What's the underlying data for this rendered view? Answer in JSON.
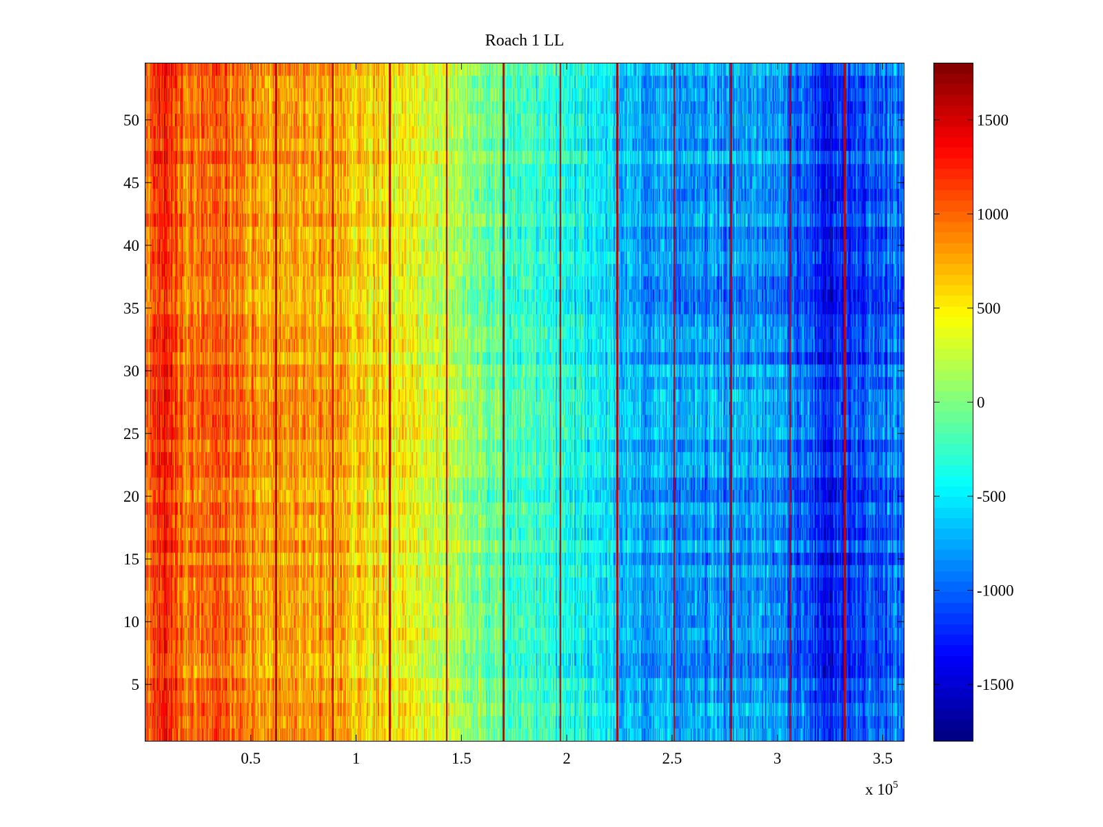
{
  "chart_data": {
    "type": "heatmap",
    "title": "Roach 1 LL",
    "xlabel": "",
    "ylabel": "",
    "x_exponent_label": {
      "prefix": "x 10",
      "power": "5"
    },
    "xlim": [
      0.0,
      3.6
    ],
    "ylim": [
      0.5,
      54.5
    ],
    "x_ticks": [
      {
        "value": 0.5,
        "label": "0.5"
      },
      {
        "value": 1.0,
        "label": "1"
      },
      {
        "value": 1.5,
        "label": "1.5"
      },
      {
        "value": 2.0,
        "label": "2"
      },
      {
        "value": 2.5,
        "label": "2.5"
      },
      {
        "value": 3.0,
        "label": "3"
      },
      {
        "value": 3.5,
        "label": "3.5"
      }
    ],
    "y_ticks": [
      {
        "value": 5,
        "label": "5"
      },
      {
        "value": 10,
        "label": "10"
      },
      {
        "value": 15,
        "label": "15"
      },
      {
        "value": 20,
        "label": "20"
      },
      {
        "value": 25,
        "label": "25"
      },
      {
        "value": 30,
        "label": "30"
      },
      {
        "value": 35,
        "label": "35"
      },
      {
        "value": 40,
        "label": "40"
      },
      {
        "value": 45,
        "label": "45"
      },
      {
        "value": 50,
        "label": "50"
      }
    ],
    "colorbar": {
      "colormap": "jet",
      "clim": [
        -1800,
        1800
      ],
      "ticks": [
        {
          "value": 1500,
          "label": "1500"
        },
        {
          "value": 1000,
          "label": "1000"
        },
        {
          "value": 500,
          "label": "500"
        },
        {
          "value": 0,
          "label": "0"
        },
        {
          "value": -500,
          "label": "-500"
        },
        {
          "value": -1000,
          "label": "-1000"
        },
        {
          "value": -1500,
          "label": "-1500"
        }
      ]
    },
    "rows": 54,
    "trend_profile": [
      {
        "x": 0.0,
        "value": 900
      },
      {
        "x": 0.08,
        "value": 1250
      },
      {
        "x": 0.2,
        "value": 900
      },
      {
        "x": 0.35,
        "value": 1000
      },
      {
        "x": 0.6,
        "value": 800
      },
      {
        "x": 0.9,
        "value": 750
      },
      {
        "x": 1.2,
        "value": 500
      },
      {
        "x": 1.5,
        "value": 100
      },
      {
        "x": 1.8,
        "value": -300
      },
      {
        "x": 2.1,
        "value": -450
      },
      {
        "x": 2.4,
        "value": -800
      },
      {
        "x": 2.7,
        "value": -800
      },
      {
        "x": 3.0,
        "value": -800
      },
      {
        "x": 3.25,
        "value": -1350
      },
      {
        "x": 3.35,
        "value": -1100
      },
      {
        "x": 3.6,
        "value": -1000
      }
    ],
    "spike_lines_x": [
      0.62,
      0.89,
      1.16,
      1.43,
      1.7,
      1.97,
      2.24,
      2.51,
      2.78,
      3.06,
      3.32
    ],
    "spike_value": 1700,
    "colors": {
      "axis": "#000000",
      "background": "#ffffff"
    }
  }
}
